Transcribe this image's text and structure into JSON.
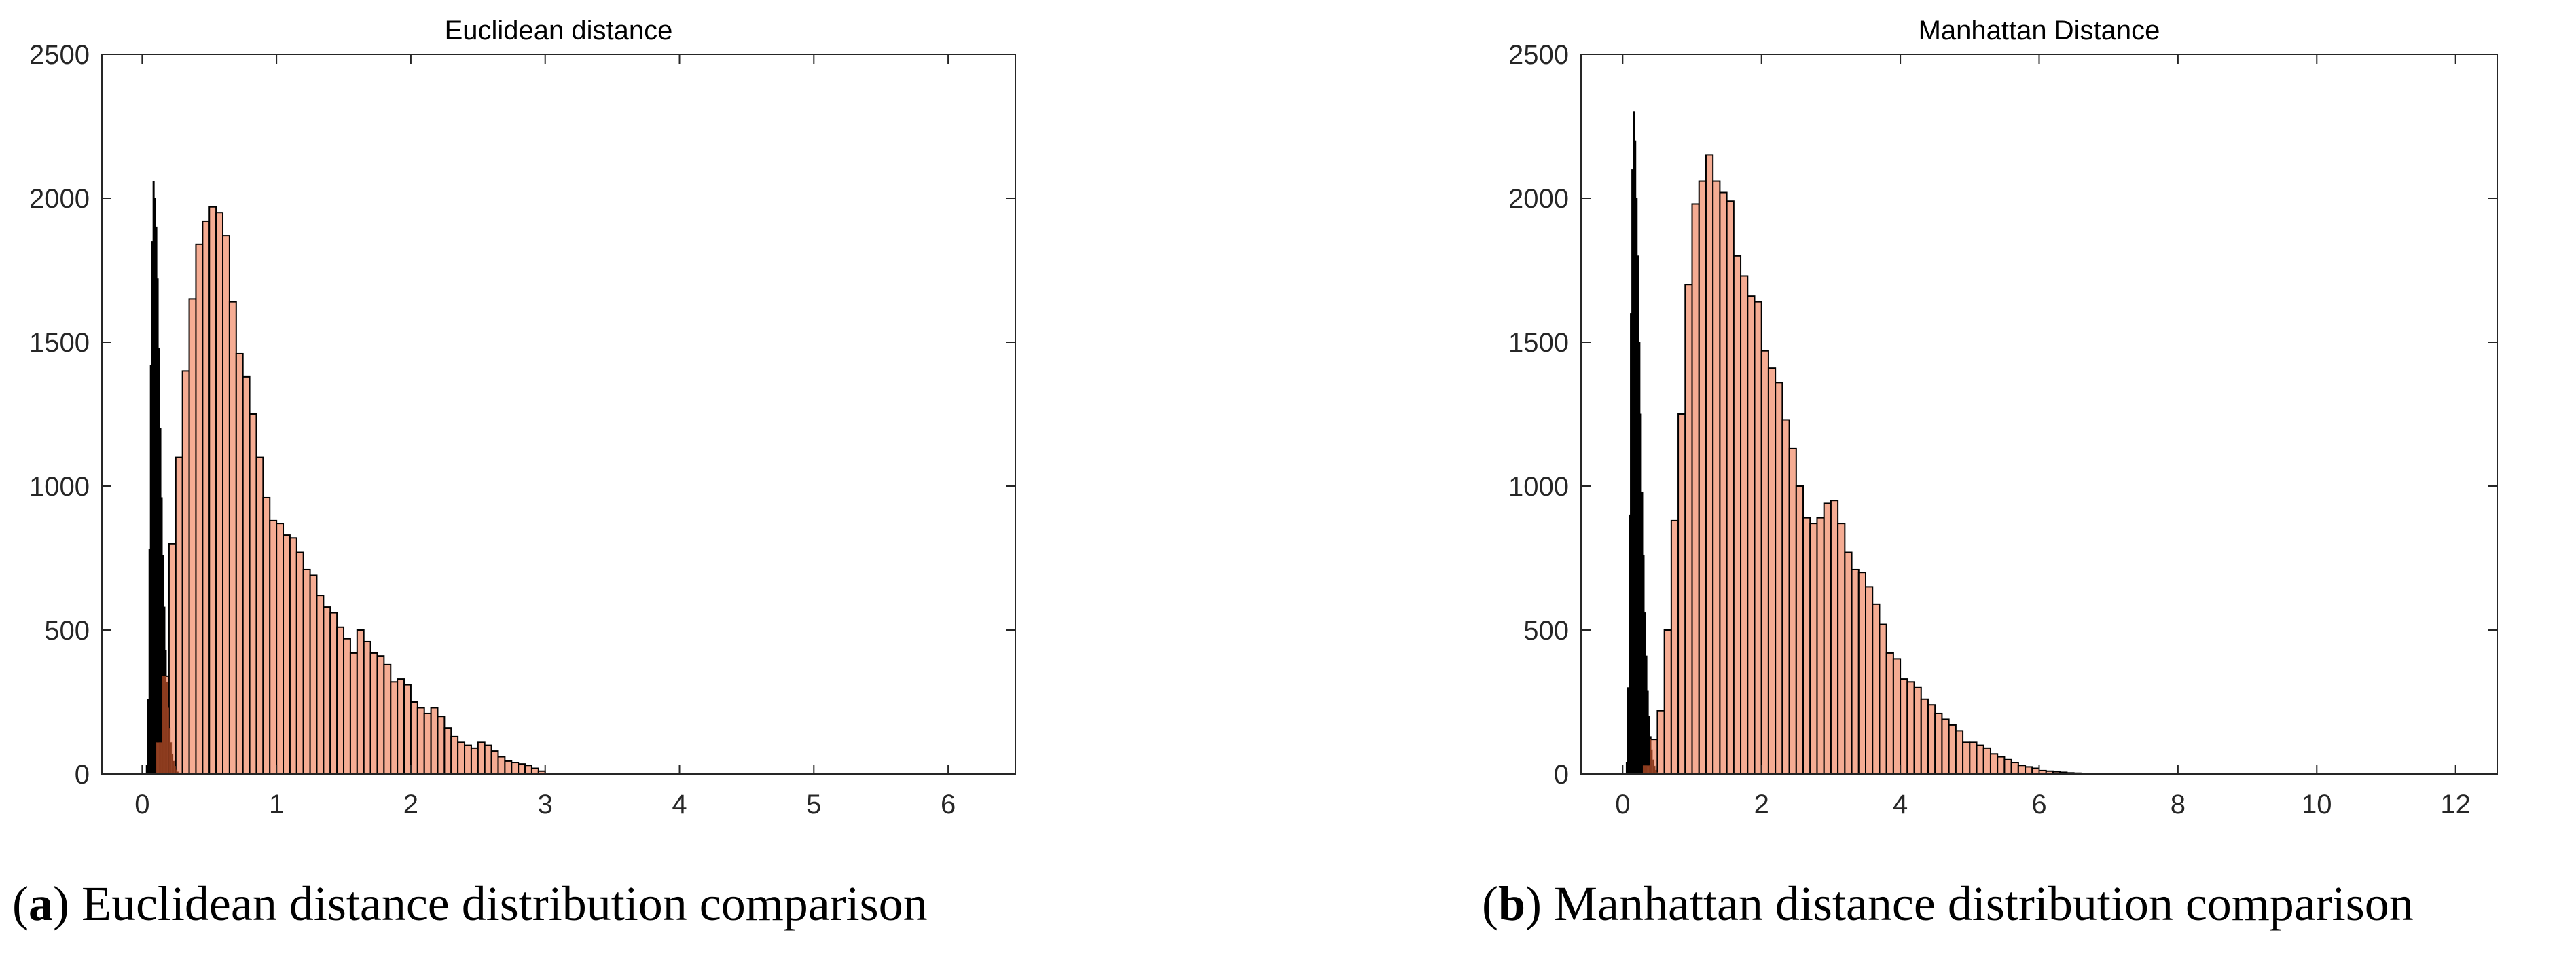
{
  "colors": {
    "tall": "#f4a184",
    "short": "#000000",
    "overlap": "#8b3a1d"
  },
  "chart_data": [
    {
      "type": "bar",
      "title": "Euclidean distance",
      "xlabel": "",
      "ylabel": "",
      "xlim": [
        -0.3,
        6.5
      ],
      "ylim": [
        0,
        2500
      ],
      "xticks": [
        0,
        1,
        2,
        3,
        4,
        5,
        6
      ],
      "yticks": [
        0,
        500,
        1000,
        1500,
        2000,
        2500
      ],
      "grid": false,
      "series": [
        {
          "color": "#000000",
          "bin_start": 0.03,
          "bin_width": 0.01,
          "values": [
            30,
            260,
            780,
            1420,
            1850,
            2060,
            2000,
            1900,
            1720,
            1480,
            1200,
            960,
            760,
            580,
            430,
            320,
            230,
            160,
            110,
            70,
            45,
            28,
            15,
            8
          ]
        },
        {
          "color": "#f4a184",
          "bin_start": 0.1,
          "bin_width": 0.05,
          "values": [
            110,
            340,
            800,
            1100,
            1400,
            1650,
            1840,
            1920,
            1970,
            1950,
            1870,
            1640,
            1460,
            1380,
            1250,
            1100,
            960,
            880,
            870,
            830,
            820,
            770,
            710,
            690,
            620,
            580,
            560,
            510,
            470,
            420,
            500,
            460,
            420,
            410,
            380,
            320,
            330,
            310,
            250,
            230,
            210,
            230,
            200,
            160,
            130,
            110,
            100,
            90,
            110,
            100,
            80,
            60,
            45,
            40,
            35,
            30,
            20,
            10,
            0,
            0
          ]
        }
      ]
    },
    {
      "type": "bar",
      "title": "Manhattan Distance",
      "xlabel": "",
      "ylabel": "",
      "xlim": [
        -0.6,
        12.6
      ],
      "ylim": [
        0,
        2500
      ],
      "xticks": [
        0,
        2,
        4,
        6,
        8,
        10,
        12
      ],
      "yticks": [
        0,
        500,
        1000,
        1500,
        2000,
        2500
      ],
      "grid": false,
      "series": [
        {
          "color": "#000000",
          "bin_start": 0.05,
          "bin_width": 0.02,
          "values": [
            40,
            300,
            900,
            1600,
            2100,
            2300,
            2200,
            2000,
            1800,
            1500,
            1250,
            980,
            760,
            560,
            410,
            290,
            200,
            130,
            85,
            50,
            28,
            14,
            6
          ]
        },
        {
          "color": "#f4a184",
          "bin_start": 0.3,
          "bin_width": 0.1,
          "values": [
            30,
            120,
            220,
            500,
            880,
            1250,
            1700,
            1980,
            2060,
            2150,
            2060,
            2020,
            1990,
            1800,
            1730,
            1660,
            1640,
            1470,
            1410,
            1360,
            1230,
            1130,
            1000,
            890,
            870,
            890,
            940,
            950,
            870,
            770,
            710,
            700,
            650,
            590,
            520,
            420,
            400,
            330,
            320,
            300,
            260,
            240,
            210,
            190,
            170,
            150,
            110,
            110,
            100,
            90,
            70,
            60,
            50,
            40,
            30,
            25,
            20,
            12,
            10,
            8,
            6,
            4,
            3,
            2,
            0
          ]
        }
      ]
    }
  ],
  "captions": [
    {
      "letter": "a",
      "text": " Euclidean distance distribution comparison"
    },
    {
      "letter": "b",
      "text": " Manhattan distance distribution comparison"
    }
  ]
}
